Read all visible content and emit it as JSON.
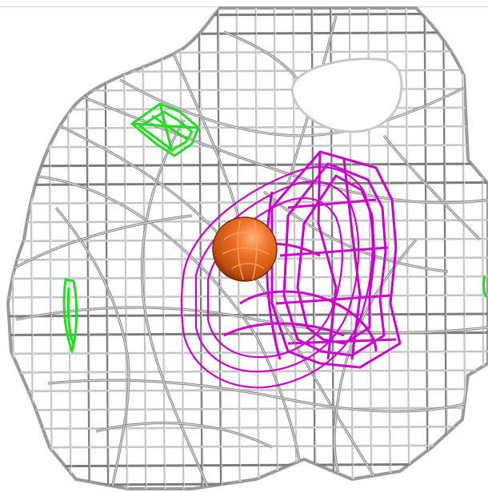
{
  "scene": {
    "description_visible_text": "",
    "colors": {
      "background": "#ffffff",
      "mesh_light": "#c4c4c4",
      "mesh_dark": "#7c7c7c",
      "mesh_highlight": "#eeeeee",
      "difference_density_positive": "#cc00cc",
      "difference_density_negative": "#22dd22",
      "atom_sphere": "#e2621c",
      "atom_sphere_dark": "#8a3106"
    }
  }
}
